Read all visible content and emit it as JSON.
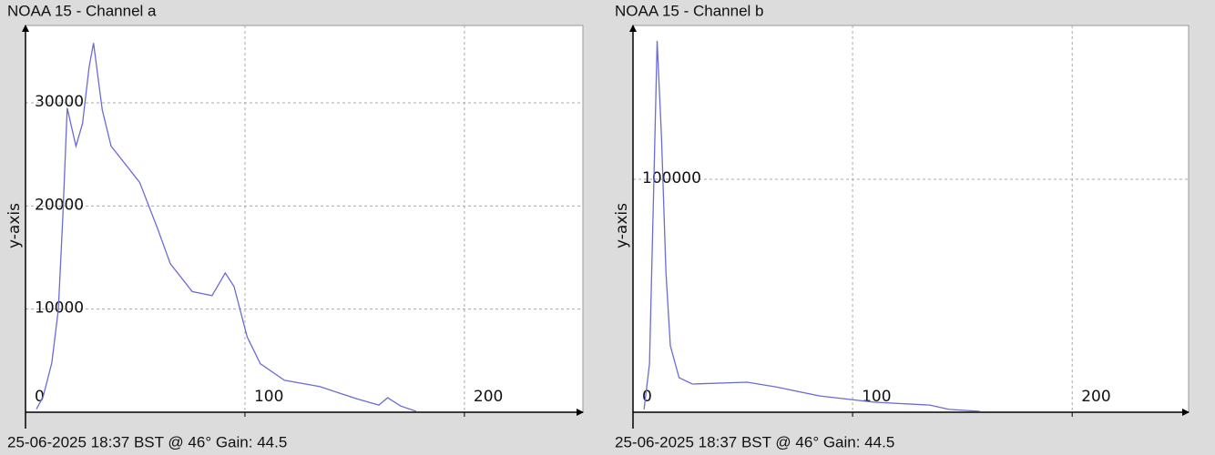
{
  "chart_data": [
    {
      "type": "line",
      "title": "NOAA 15 - Channel a",
      "y_label": "y-axis",
      "footer": "25-06-2025 18:37 BST @ 46° Gain: 44.5",
      "x": [
        5,
        8,
        12,
        15,
        17,
        19,
        23,
        26,
        29,
        31,
        35,
        39,
        52,
        60,
        66,
        76,
        85,
        91,
        95,
        101,
        107,
        118,
        134,
        151,
        161,
        165,
        171,
        178
      ],
      "values": [
        300,
        1500,
        4800,
        10000,
        19000,
        29500,
        25800,
        28000,
        33500,
        35800,
        29300,
        25800,
        22300,
        17900,
        14400,
        11700,
        11300,
        13500,
        12200,
        7300,
        4700,
        3100,
        2500,
        1300,
        700,
        1400,
        600,
        90
      ],
      "color": "#6b6bd6",
      "xlim": [
        0,
        254
      ],
      "ylim": [
        0,
        37500
      ],
      "xticks": [
        0,
        100,
        200
      ],
      "yticks": [
        10000,
        20000,
        30000
      ],
      "grid": true
    },
    {
      "type": "line",
      "title": "NOAA 15 - Channel b",
      "y_label": "y-axis",
      "footer": "25-06-2025 18:37 BST @ 46° Gain: 44.5",
      "x": [
        5,
        7.5,
        9.5,
        11,
        13,
        15,
        17,
        21,
        27,
        52,
        65,
        85,
        110,
        135,
        144,
        158
      ],
      "values": [
        1200,
        20700,
        98800,
        159400,
        118000,
        59800,
        28500,
        14800,
        12100,
        12900,
        10900,
        7000,
        4300,
        3100,
        1200,
        400
      ],
      "color": "#6b6bd6",
      "xlim": [
        0,
        253
      ],
      "ylim": [
        0,
        166000
      ],
      "xticks": [
        0,
        100,
        200
      ],
      "yticks": [
        100000
      ],
      "grid": true
    }
  ]
}
